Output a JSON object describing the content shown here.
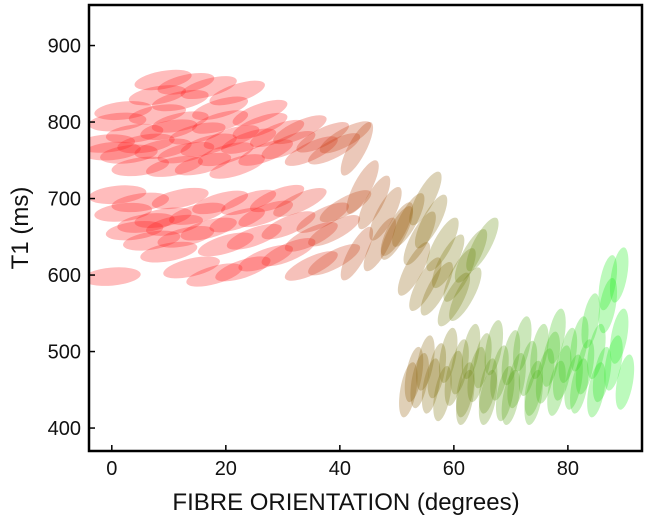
{
  "chart_data": {
    "type": "scatter",
    "title": "",
    "xlabel": "FIBRE ORIENTATION (degrees)",
    "ylabel": "T1 (ms)",
    "xlim": [
      -4,
      93
    ],
    "ylim": [
      370,
      953
    ],
    "xticks": [
      0,
      20,
      40,
      60,
      80
    ],
    "yticks": [
      400,
      500,
      600,
      700,
      800,
      900
    ],
    "grid": false,
    "legend": "none",
    "marker": "translucent ellipse, colour graded red to green with fibre orientation",
    "colors": {
      "low_angle": "#ff2020",
      "mid_angle": "#8a6a10",
      "high_angle": "#22ee22"
    },
    "points": [
      [
        -1,
        772
      ],
      [
        0,
        762
      ],
      [
        1,
        800
      ],
      [
        2,
        815
      ],
      [
        3,
        758
      ],
      [
        4,
        785
      ],
      [
        5,
        742
      ],
      [
        6,
        772
      ],
      [
        8,
        810
      ],
      [
        9,
        765
      ],
      [
        10,
        790
      ],
      [
        11,
        742
      ],
      [
        12,
        800
      ],
      [
        13,
        760
      ],
      [
        15,
        785
      ],
      [
        16,
        745
      ],
      [
        17,
        770
      ],
      [
        19,
        800
      ],
      [
        20,
        758
      ],
      [
        21,
        780
      ],
      [
        22,
        742
      ],
      [
        24,
        775
      ],
      [
        26,
        795
      ],
      [
        27,
        760
      ],
      [
        29,
        785
      ],
      [
        31,
        770
      ],
      [
        33,
        790
      ],
      [
        35,
        762
      ],
      [
        37,
        780
      ],
      [
        39,
        765
      ],
      [
        41,
        780
      ],
      [
        43,
        765
      ],
      [
        1,
        705
      ],
      [
        2,
        682
      ],
      [
        4,
        658
      ],
      [
        5,
        695
      ],
      [
        6,
        668
      ],
      [
        7,
        645
      ],
      [
        9,
        675
      ],
      [
        11,
        665
      ],
      [
        12,
        700
      ],
      [
        13,
        650
      ],
      [
        15,
        680
      ],
      [
        17,
        660
      ],
      [
        19,
        695
      ],
      [
        20,
        640
      ],
      [
        22,
        672
      ],
      [
        24,
        695
      ],
      [
        25,
        650
      ],
      [
        27,
        680
      ],
      [
        29,
        700
      ],
      [
        31,
        665
      ],
      [
        33,
        695
      ],
      [
        35,
        650
      ],
      [
        37,
        675
      ],
      [
        39,
        658
      ],
      [
        41,
        690
      ],
      [
        9,
        855
      ],
      [
        13,
        850
      ],
      [
        17,
        845
      ],
      [
        22,
        838
      ],
      [
        8,
        835
      ],
      [
        12,
        828
      ],
      [
        19,
        818
      ],
      [
        26,
        812
      ],
      [
        0,
        598
      ],
      [
        10,
        630
      ],
      [
        14,
        610
      ],
      [
        18,
        600
      ],
      [
        23,
        608
      ],
      [
        27,
        622
      ],
      [
        31,
        630
      ],
      [
        35,
        612
      ],
      [
        39,
        620
      ],
      [
        43,
        628
      ],
      [
        47,
        640
      ],
      [
        50,
        655
      ],
      [
        44,
        715
      ],
      [
        46,
        695
      ],
      [
        48,
        680
      ],
      [
        50,
        660
      ],
      [
        52,
        672
      ],
      [
        54,
        648
      ],
      [
        55,
        700
      ],
      [
        56,
        670
      ],
      [
        58,
        640
      ],
      [
        59,
        618
      ],
      [
        61,
        600
      ],
      [
        63,
        625
      ],
      [
        65,
        640
      ],
      [
        53,
        608
      ],
      [
        55,
        588
      ],
      [
        57,
        582
      ],
      [
        60,
        568
      ],
      [
        62,
        575
      ],
      [
        52,
        450
      ],
      [
        53,
        470
      ],
      [
        54,
        462
      ],
      [
        55,
        485
      ],
      [
        56,
        455
      ],
      [
        57,
        475
      ],
      [
        58,
        445
      ],
      [
        59,
        495
      ],
      [
        60,
        465
      ],
      [
        61,
        480
      ],
      [
        62,
        450
      ],
      [
        63,
        500
      ],
      [
        64,
        470
      ],
      [
        65,
        488
      ],
      [
        66,
        455
      ],
      [
        67,
        505
      ],
      [
        68,
        472
      ],
      [
        69,
        445
      ],
      [
        70,
        492
      ],
      [
        71,
        462
      ],
      [
        72,
        510
      ],
      [
        73,
        478
      ],
      [
        74,
        452
      ],
      [
        75,
        500
      ],
      [
        76,
        468
      ],
      [
        77,
        490
      ],
      [
        78,
        520
      ],
      [
        79,
        472
      ],
      [
        80,
        495
      ],
      [
        81,
        460
      ],
      [
        82,
        510
      ],
      [
        83,
        480
      ],
      [
        84,
        540
      ],
      [
        85,
        500
      ],
      [
        86,
        470
      ],
      [
        87,
        560
      ],
      [
        88,
        485
      ],
      [
        89,
        520
      ],
      [
        90,
        460
      ],
      [
        87,
        590
      ],
      [
        89,
        600
      ],
      [
        85,
        450
      ],
      [
        82,
        455
      ],
      [
        78,
        452
      ],
      [
        74,
        440
      ],
      [
        70,
        440
      ],
      [
        66,
        440
      ],
      [
        62,
        440
      ]
    ]
  }
}
